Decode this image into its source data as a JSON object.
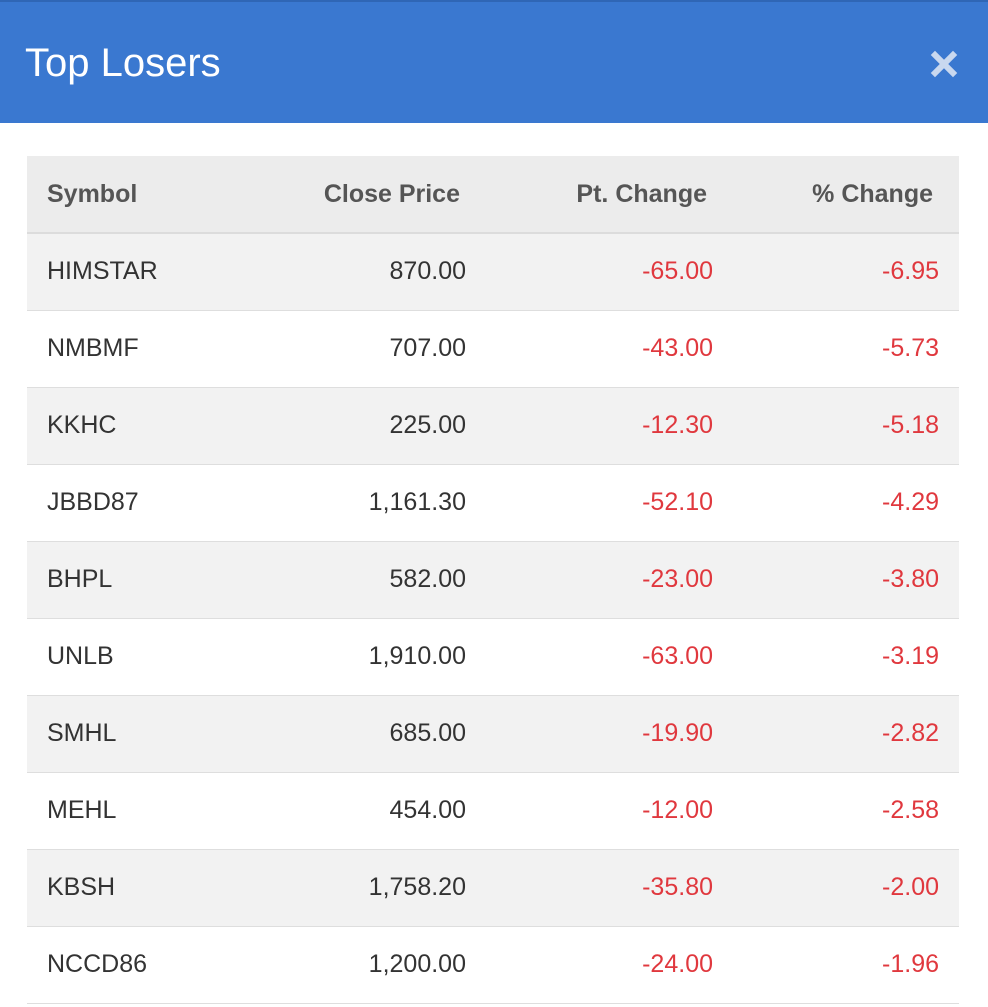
{
  "modal": {
    "title": "Top Losers",
    "close_icon": "close-icon"
  },
  "colors": {
    "header_bg": "#3a78d0",
    "negative": "#e0383e"
  },
  "table": {
    "columns": [
      "Symbol",
      "Close Price",
      "Pt. Change",
      "% Change"
    ],
    "rows": [
      {
        "symbol": "HIMSTAR",
        "close": "870.00",
        "pt": "-65.00",
        "pct": "-6.95"
      },
      {
        "symbol": "NMBMF",
        "close": "707.00",
        "pt": "-43.00",
        "pct": "-5.73"
      },
      {
        "symbol": "KKHC",
        "close": "225.00",
        "pt": "-12.30",
        "pct": "-5.18"
      },
      {
        "symbol": "JBBD87",
        "close": "1,161.30",
        "pt": "-52.10",
        "pct": "-4.29"
      },
      {
        "symbol": "BHPL",
        "close": "582.00",
        "pt": "-23.00",
        "pct": "-3.80"
      },
      {
        "symbol": "UNLB",
        "close": "1,910.00",
        "pt": "-63.00",
        "pct": "-3.19"
      },
      {
        "symbol": "SMHL",
        "close": "685.00",
        "pt": "-19.90",
        "pct": "-2.82"
      },
      {
        "symbol": "MEHL",
        "close": "454.00",
        "pt": "-12.00",
        "pct": "-2.58"
      },
      {
        "symbol": "KBSH",
        "close": "1,758.20",
        "pt": "-35.80",
        "pct": "-2.00"
      },
      {
        "symbol": "NCCD86",
        "close": "1,200.00",
        "pt": "-24.00",
        "pct": "-1.96"
      }
    ]
  }
}
